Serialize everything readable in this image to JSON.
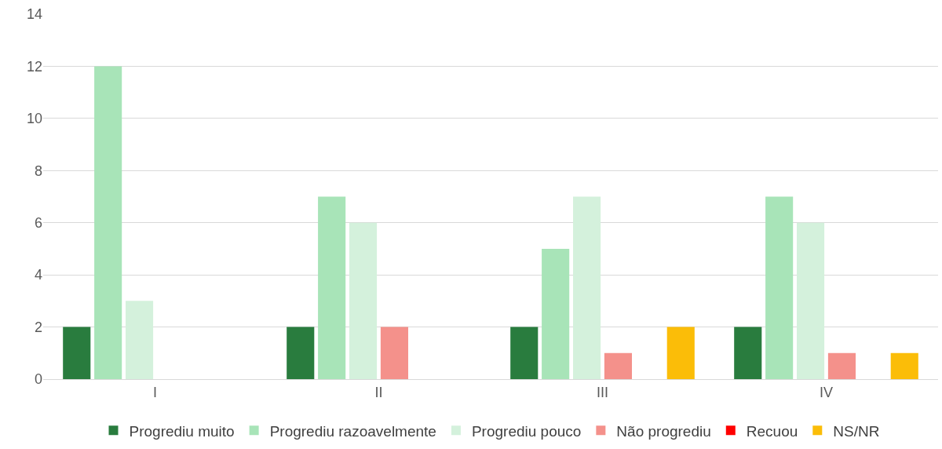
{
  "chart_data": {
    "type": "bar",
    "categories": [
      "I",
      "II",
      "III",
      "IV"
    ],
    "series": [
      {
        "name": "Progrediu muito",
        "color": "#297c3e",
        "values": [
          2,
          2,
          2,
          2
        ]
      },
      {
        "name": "Progrediu razoavelmente",
        "color": "#a8e4b8",
        "values": [
          12,
          7,
          5,
          7
        ]
      },
      {
        "name": "Progrediu pouco",
        "color": "#d4f1dc",
        "values": [
          3,
          6,
          7,
          6
        ]
      },
      {
        "name": "Não progrediu",
        "color": "#f4918b",
        "values": [
          0,
          2,
          1,
          1
        ]
      },
      {
        "name": "Recuou",
        "color": "#ff0000",
        "values": [
          0,
          0,
          0,
          0
        ]
      },
      {
        "name": "NS/NR",
        "color": "#fbbd08",
        "values": [
          0,
          0,
          2,
          1
        ]
      }
    ],
    "ylim": [
      0,
      14
    ],
    "yticks": [
      0,
      2,
      4,
      6,
      8,
      10,
      12,
      14
    ],
    "grid": "y",
    "legend": "bottom"
  }
}
